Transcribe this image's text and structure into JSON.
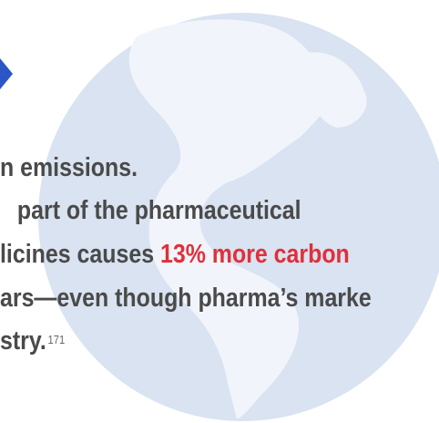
{
  "paragraph": {
    "lines": [
      {
        "text": "n emissions."
      },
      {
        "text": "part of the pharmaceutical"
      },
      {
        "text": "licines causes ",
        "highlight": "13% more carbon"
      },
      {
        "text": "ars—even though pharma’s marke"
      },
      {
        "text": "stry.",
        "superscript": "171"
      }
    ]
  }
}
